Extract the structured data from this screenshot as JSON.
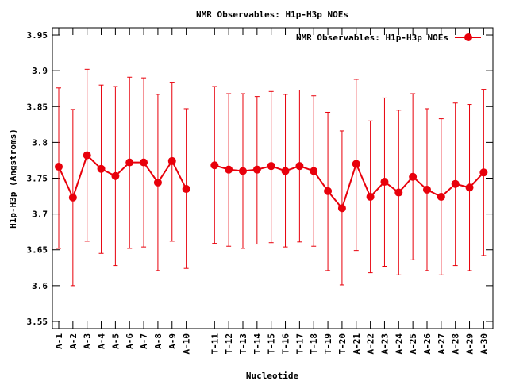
{
  "chart_data": {
    "type": "line",
    "title": "NMR Observables: H1p-H3p NOEs",
    "xlabel": "Nucleotide",
    "ylabel": "H1p-H3p (Angstroms)",
    "ylim": [
      3.54,
      3.96
    ],
    "yticks": [
      "3.55",
      "3.6",
      "3.65",
      "3.7",
      "3.75",
      "3.8",
      "3.85",
      "3.9",
      "3.95"
    ],
    "legend_placement": "top-right",
    "grid": false,
    "series": [
      {
        "name": "NMR Observables: H1p-H3p NOEs",
        "color": "#e8000b",
        "points": [
          {
            "x": "A-1",
            "y": 3.766,
            "lo": 3.652,
            "hi": 3.876
          },
          {
            "x": "A-2",
            "y": 3.723,
            "lo": 3.6,
            "hi": 3.846
          },
          {
            "x": "A-3",
            "y": 3.782,
            "lo": 3.662,
            "hi": 3.902
          },
          {
            "x": "A-4",
            "y": 3.763,
            "lo": 3.645,
            "hi": 3.88
          },
          {
            "x": "A-5",
            "y": 3.753,
            "lo": 3.628,
            "hi": 3.878
          },
          {
            "x": "A-6",
            "y": 3.772,
            "lo": 3.652,
            "hi": 3.891
          },
          {
            "x": "A-7",
            "y": 3.772,
            "lo": 3.654,
            "hi": 3.89
          },
          {
            "x": "A-8",
            "y": 3.744,
            "lo": 3.621,
            "hi": 3.867
          },
          {
            "x": "A-9",
            "y": 3.774,
            "lo": 3.662,
            "hi": 3.884
          },
          {
            "x": "A-10",
            "y": 3.735,
            "lo": 3.624,
            "hi": 3.847
          },
          {
            "x": "",
            "y": null
          },
          {
            "x": "T-11",
            "y": 3.768,
            "lo": 3.659,
            "hi": 3.878
          },
          {
            "x": "T-12",
            "y": 3.762,
            "lo": 3.655,
            "hi": 3.868
          },
          {
            "x": "T-13",
            "y": 3.76,
            "lo": 3.652,
            "hi": 3.868
          },
          {
            "x": "T-14",
            "y": 3.762,
            "lo": 3.658,
            "hi": 3.864
          },
          {
            "x": "T-15",
            "y": 3.767,
            "lo": 3.66,
            "hi": 3.871
          },
          {
            "x": "T-16",
            "y": 3.76,
            "lo": 3.654,
            "hi": 3.867
          },
          {
            "x": "T-17",
            "y": 3.767,
            "lo": 3.661,
            "hi": 3.873
          },
          {
            "x": "T-18",
            "y": 3.76,
            "lo": 3.655,
            "hi": 3.865
          },
          {
            "x": "T-19",
            "y": 3.732,
            "lo": 3.621,
            "hi": 3.842
          },
          {
            "x": "T-20",
            "y": 3.708,
            "lo": 3.601,
            "hi": 3.816
          },
          {
            "x": "A-21",
            "y": 3.77,
            "lo": 3.649,
            "hi": 3.888
          },
          {
            "x": "A-22",
            "y": 3.724,
            "lo": 3.618,
            "hi": 3.83
          },
          {
            "x": "A-23",
            "y": 3.745,
            "lo": 3.627,
            "hi": 3.862
          },
          {
            "x": "A-24",
            "y": 3.73,
            "lo": 3.615,
            "hi": 3.845
          },
          {
            "x": "A-25",
            "y": 3.752,
            "lo": 3.636,
            "hi": 3.868
          },
          {
            "x": "A-26",
            "y": 3.734,
            "lo": 3.621,
            "hi": 3.847
          },
          {
            "x": "A-27",
            "y": 3.724,
            "lo": 3.615,
            "hi": 3.833
          },
          {
            "x": "A-28",
            "y": 3.742,
            "lo": 3.628,
            "hi": 3.855
          },
          {
            "x": "A-29",
            "y": 3.737,
            "lo": 3.621,
            "hi": 3.853
          },
          {
            "x": "A-30",
            "y": 3.758,
            "lo": 3.642,
            "hi": 3.874
          }
        ]
      }
    ]
  }
}
